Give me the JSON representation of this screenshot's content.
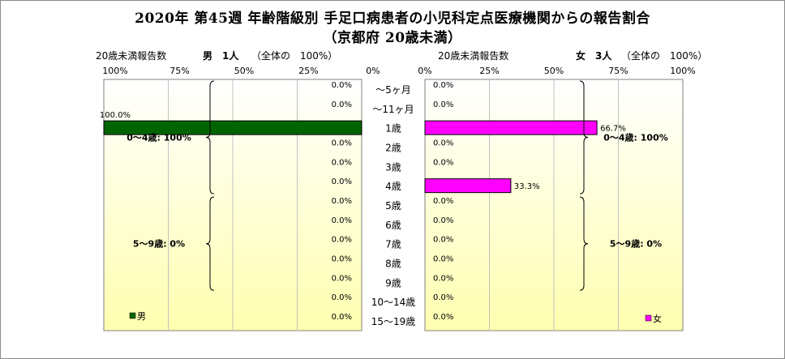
{
  "title_line1": "2020年 第45週 年齢階級別 手足口病患者の小児科定点医療機関からの報告割合",
  "title_line2": "（京都府 20歳未満）",
  "male_panel": {
    "header_label": "20歳未満報告数",
    "header_count": "男　1人",
    "header_note": "（全体の　100%）",
    "ticks": [
      "100%",
      "75%",
      "50%",
      "25%",
      "0%"
    ],
    "legend": "男"
  },
  "female_panel": {
    "header_label": "20歳未満報告数",
    "header_count": "女　3人",
    "header_note": "（全体の　100%）",
    "ticks": [
      "0%",
      "25%",
      "50%",
      "75%",
      "100%"
    ],
    "legend": "女"
  },
  "colors": {
    "male": "#006400",
    "female": "#ff00ff",
    "plot_bg_top": "#ffffff",
    "plot_bg_bottom": "#ffffb0"
  },
  "chart_data": {
    "type": "bar",
    "orientation": "horizontal-butterfly",
    "categories": [
      "～5ヶ月",
      "～11ヶ月",
      "1歳",
      "2歳",
      "3歳",
      "4歳",
      "5歳",
      "6歳",
      "7歳",
      "8歳",
      "9歳",
      "10～14歳",
      "15～19歳"
    ],
    "series": [
      {
        "name": "男",
        "values": [
          0,
          0,
          100,
          0,
          0,
          0,
          0,
          0,
          0,
          0,
          0,
          0,
          0
        ],
        "labels": [
          "0.0%",
          "0.0%",
          "100.0%",
          "0.0%",
          "0.0%",
          "0.0%",
          "0.0%",
          "0.0%",
          "0.0%",
          "0.0%",
          "0.0%",
          "0.0%",
          "0.0%"
        ]
      },
      {
        "name": "女",
        "values": [
          0,
          0,
          66.7,
          0,
          0,
          33.3,
          0,
          0,
          0,
          0,
          0,
          0,
          0
        ],
        "labels": [
          "0.0%",
          "0.0%",
          "66.7%",
          "0.0%",
          "0.0%",
          "33.3%",
          "0.0%",
          "0.0%",
          "0.0%",
          "0.0%",
          "0.0%",
          "0.0%",
          "0.0%"
        ]
      }
    ],
    "xlim": [
      0,
      100
    ],
    "grid": true,
    "annotations": {
      "male": [
        {
          "text": "0～4歳: 100%",
          "from": 0,
          "to": 5
        },
        {
          "text": "5～9歳: 0%",
          "from": 6,
          "to": 10
        }
      ],
      "female": [
        {
          "text": "0～4歳: 100%",
          "from": 0,
          "to": 5
        },
        {
          "text": "5～9歳: 0%",
          "from": 6,
          "to": 10
        }
      ]
    }
  }
}
